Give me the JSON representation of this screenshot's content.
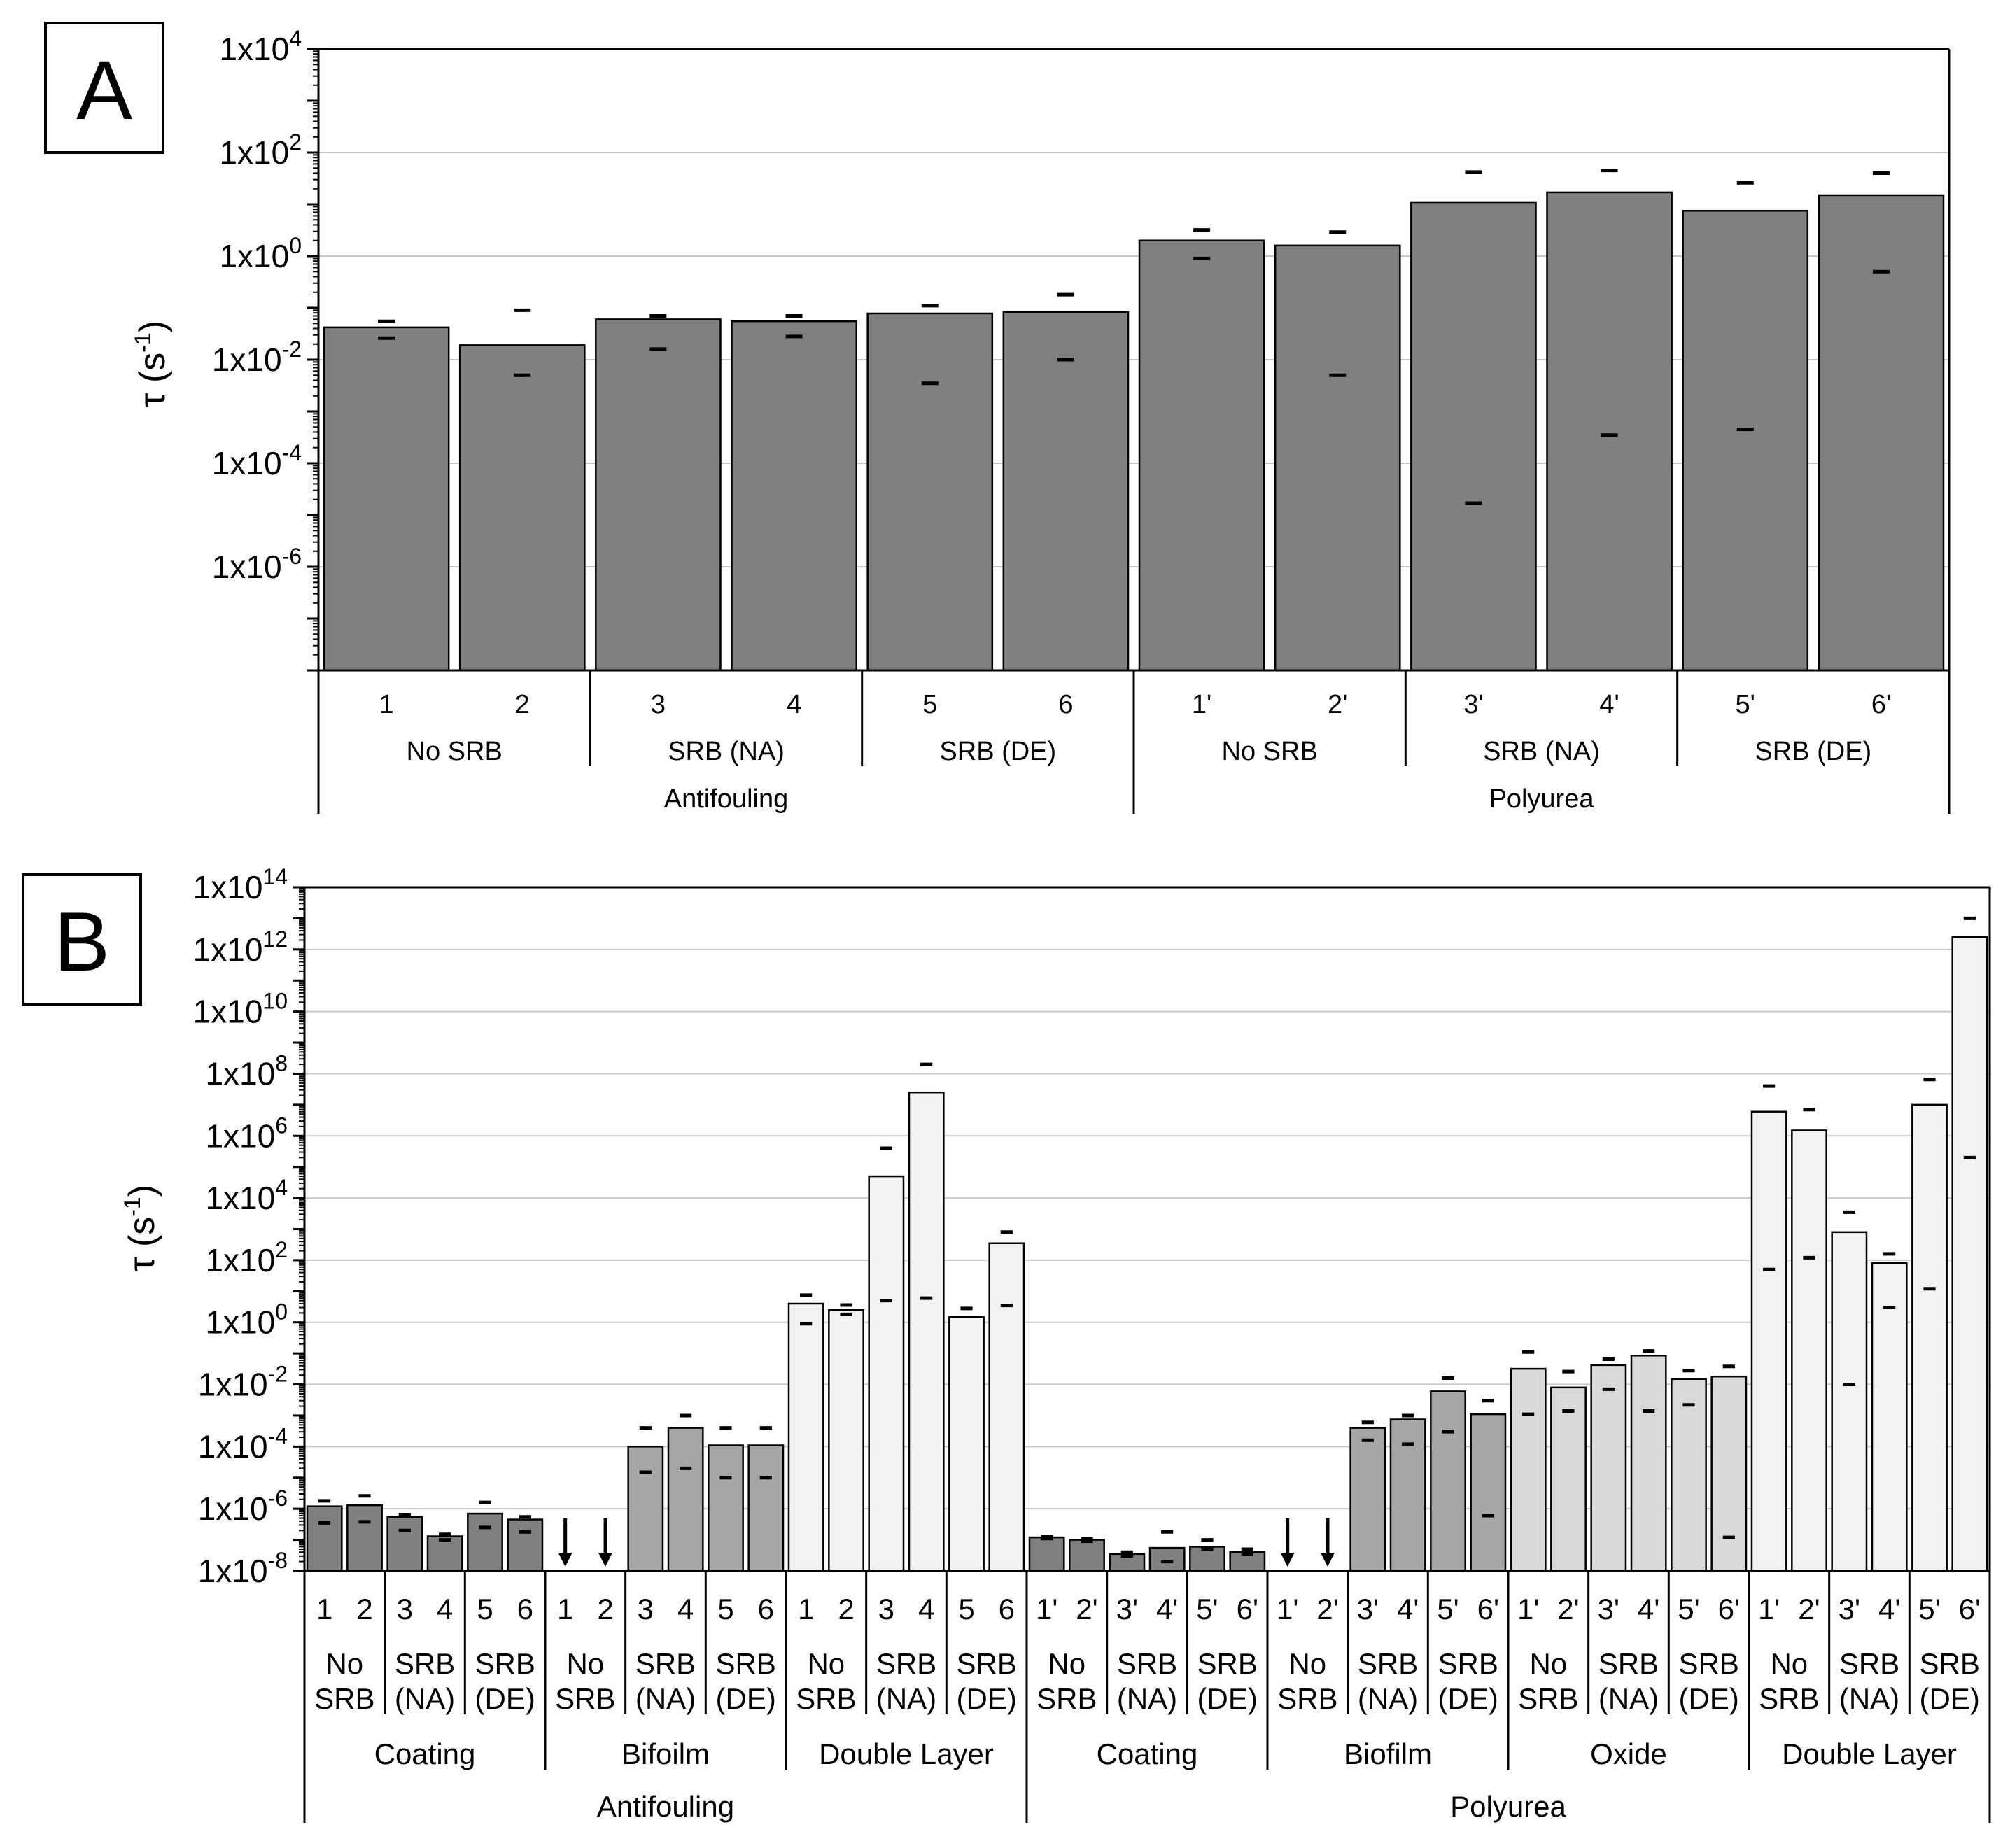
{
  "colors": {
    "dark": "#808080",
    "medium": "#a6a6a6",
    "light": "#d9d9d9",
    "lightest": "#f2f2f2"
  },
  "chart_data": [
    {
      "panel": "A",
      "type": "bar",
      "ylabel_base": "τ (s",
      "ylabel_sup": "-1",
      "ylabel_end": ")",
      "yscale": "log",
      "ylim_exp": [
        -8,
        4
      ],
      "ytick_exps": [
        4,
        2,
        0,
        -2,
        -4,
        -6
      ],
      "categories": [
        "1",
        "2",
        "3",
        "4",
        "5",
        "6",
        "1'",
        "2'",
        "3'",
        "4'",
        "5'",
        "6'"
      ],
      "values": [
        0.042,
        0.019,
        0.06,
        0.055,
        0.078,
        0.083,
        2.0,
        1.6,
        11.0,
        17.0,
        7.5,
        15.0
      ],
      "err_high": [
        0.055,
        0.09,
        0.07,
        0.07,
        0.11,
        0.18,
        3.2,
        2.9,
        42.0,
        45.0,
        26.0,
        40.0
      ],
      "err_low": [
        0.026,
        0.005,
        0.016,
        0.028,
        0.0035,
        0.01,
        0.9,
        0.005,
        1.7e-05,
        0.00035,
        0.00045,
        0.5
      ],
      "color_keys": [
        "dark",
        "dark",
        "dark",
        "dark",
        "dark",
        "dark",
        "dark",
        "dark",
        "dark",
        "dark",
        "dark",
        "dark"
      ],
      "level2": [
        {
          "label": "No SRB",
          "span": 2
        },
        {
          "label": "SRB (NA)",
          "span": 2
        },
        {
          "label": "SRB (DE)",
          "span": 2
        },
        {
          "label": "No SRB",
          "span": 2
        },
        {
          "label": "SRB (NA)",
          "span": 2
        },
        {
          "label": "SRB (DE)",
          "span": 2
        }
      ],
      "level3": [
        {
          "label": "Antifouling",
          "span": 6
        },
        {
          "label": "Polyurea",
          "span": 6
        }
      ]
    },
    {
      "panel": "B",
      "type": "bar",
      "ylabel_base": "τ (s",
      "ylabel_sup": "-1",
      "ylabel_end": ")",
      "yscale": "log",
      "ylim_exp": [
        -8,
        14
      ],
      "ytick_exps": [
        14,
        12,
        10,
        8,
        6,
        4,
        2,
        0,
        -2,
        -4,
        -6,
        -8
      ],
      "categories": [
        "1",
        "2",
        "3",
        "4",
        "5",
        "6",
        "1",
        "2",
        "3",
        "4",
        "5",
        "6",
        "1",
        "2",
        "3",
        "4",
        "5",
        "6",
        "1'",
        "2'",
        "3'",
        "4'",
        "5'",
        "6'",
        "1'",
        "2'",
        "3'",
        "4'",
        "5'",
        "6'",
        "1'",
        "2'",
        "3'",
        "4'",
        "5'",
        "6'",
        "1'",
        "2'",
        "3'",
        "4'",
        "5'",
        "6'"
      ],
      "values": [
        1.2e-06,
        1.3e-06,
        5.5e-07,
        1.3e-07,
        7e-07,
        4.5e-07,
        null,
        null,
        0.0001,
        0.0004,
        0.00011,
        0.00011,
        4,
        2.5,
        50000.0,
        25000000.0,
        1.5,
        350,
        1.2e-07,
        1e-07,
        3.5e-08,
        5.5e-08,
        6e-08,
        4e-08,
        null,
        null,
        0.0004,
        0.00075,
        0.006,
        0.0011,
        0.032,
        0.008,
        0.042,
        0.085,
        0.015,
        0.018,
        6000000.0,
        1500000.0,
        800.0,
        80.0,
        10000000.0,
        2500000000000.0
      ],
      "err_high": [
        1.8e-06,
        2.6e-06,
        6.5e-07,
        1.5e-07,
        1.6e-06,
        5.5e-07,
        null,
        null,
        0.0004,
        0.001,
        0.0004,
        0.0004,
        7.5,
        3.6,
        400000.0,
        200000000.0,
        2.8,
        800,
        1.3e-07,
        1.1e-07,
        4e-08,
        1.8e-07,
        1e-07,
        5e-08,
        null,
        null,
        0.0006,
        0.001,
        0.016,
        0.003,
        0.11,
        0.026,
        0.065,
        0.12,
        0.028,
        0.038,
        40000000.0,
        7000000.0,
        3500.0,
        160.0,
        65000000.0,
        10000000000000.0
      ],
      "err_low": [
        3.5e-07,
        3.8e-07,
        2e-07,
        1e-07,
        2.5e-07,
        1.8e-07,
        null,
        null,
        1.5e-05,
        2e-05,
        1e-05,
        1e-05,
        0.9,
        1.8,
        5,
        6,
        null,
        3.5,
        1.1e-07,
        9e-08,
        3e-08,
        2e-08,
        5e-08,
        3.5e-08,
        null,
        null,
        0.00016,
        0.00012,
        0.0003,
        6e-07,
        0.0011,
        0.0014,
        0.007,
        0.0014,
        0.0022,
        1.2e-07,
        50.0,
        120.0,
        0.01,
        3.0,
        12.0,
        200000.0
      ],
      "color_keys": [
        "dark",
        "dark",
        "dark",
        "dark",
        "dark",
        "dark",
        "medium",
        "medium",
        "medium",
        "medium",
        "medium",
        "medium",
        "lightest",
        "lightest",
        "lightest",
        "lightest",
        "lightest",
        "lightest",
        "dark",
        "dark",
        "dark",
        "dark",
        "dark",
        "dark",
        "medium",
        "medium",
        "medium",
        "medium",
        "medium",
        "medium",
        "light",
        "light",
        "light",
        "light",
        "light",
        "light",
        "lightest",
        "lightest",
        "lightest",
        "lightest",
        "lightest",
        "lightest"
      ],
      "below_scale_marker": "arrow-down",
      "level2": [
        {
          "line1": "No",
          "line2": "SRB",
          "span": 2
        },
        {
          "line1": "SRB",
          "line2": "(NA)",
          "span": 2
        },
        {
          "line1": "SRB",
          "line2": "(DE)",
          "span": 2
        },
        {
          "line1": "No",
          "line2": "SRB",
          "span": 2
        },
        {
          "line1": "SRB",
          "line2": "(NA)",
          "span": 2
        },
        {
          "line1": "SRB",
          "line2": "(DE)",
          "span": 2
        },
        {
          "line1": "No",
          "line2": "SRB",
          "span": 2
        },
        {
          "line1": "SRB",
          "line2": "(NA)",
          "span": 2
        },
        {
          "line1": "SRB",
          "line2": "(DE)",
          "span": 2
        },
        {
          "line1": "No",
          "line2": "SRB",
          "span": 2
        },
        {
          "line1": "SRB",
          "line2": "(NA)",
          "span": 2
        },
        {
          "line1": "SRB",
          "line2": "(DE)",
          "span": 2
        },
        {
          "line1": "No",
          "line2": "SRB",
          "span": 2
        },
        {
          "line1": "SRB",
          "line2": "(NA)",
          "span": 2
        },
        {
          "line1": "SRB",
          "line2": "(DE)",
          "span": 2
        },
        {
          "line1": "No",
          "line2": "SRB",
          "span": 2
        },
        {
          "line1": "SRB",
          "line2": "(NA)",
          "span": 2
        },
        {
          "line1": "SRB",
          "line2": "(DE)",
          "span": 2
        },
        {
          "line1": "No",
          "line2": "SRB",
          "span": 2
        },
        {
          "line1": "SRB",
          "line2": "(NA)",
          "span": 2
        },
        {
          "line1": "SRB",
          "line2": "(DE)",
          "span": 2
        }
      ],
      "level3": [
        {
          "label": "Coating",
          "span": 6
        },
        {
          "label": "Bifoilm",
          "span": 6
        },
        {
          "label": "Double Layer",
          "span": 6
        },
        {
          "label": "Coating",
          "span": 6
        },
        {
          "label": "Biofilm",
          "span": 6
        },
        {
          "label": "Oxide",
          "span": 6
        },
        {
          "label": "Double Layer",
          "span": 6
        }
      ],
      "level4": [
        {
          "label": "Antifouling",
          "span": 18
        },
        {
          "label": "Polyurea",
          "span": 24
        }
      ]
    }
  ]
}
